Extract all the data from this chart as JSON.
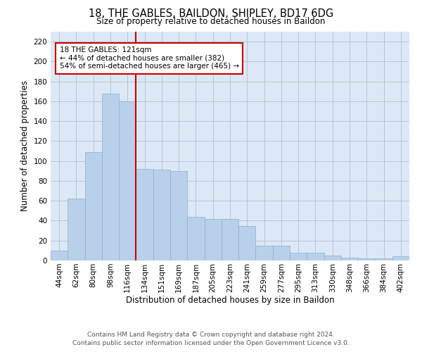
{
  "title": "18, THE GABLES, BAILDON, SHIPLEY, BD17 6DG",
  "subtitle": "Size of property relative to detached houses in Baildon",
  "xlabel": "Distribution of detached houses by size in Baildon",
  "ylabel": "Number of detached properties",
  "categories": [
    "44sqm",
    "62sqm",
    "80sqm",
    "98sqm",
    "116sqm",
    "134sqm",
    "151sqm",
    "169sqm",
    "187sqm",
    "205sqm",
    "223sqm",
    "241sqm",
    "259sqm",
    "277sqm",
    "295sqm",
    "313sqm",
    "330sqm",
    "348sqm",
    "366sqm",
    "384sqm",
    "402sqm"
  ],
  "values": [
    10,
    62,
    109,
    168,
    160,
    92,
    91,
    90,
    44,
    42,
    42,
    35,
    15,
    15,
    8,
    8,
    5,
    3,
    2,
    2,
    4
  ],
  "bar_color": "#b8d0ea",
  "bar_edge_color": "#8ab0d0",
  "background_color": "#ffffff",
  "axes_bg_color": "#dce8f5",
  "grid_color": "#b0bfd0",
  "vline_x": 4.5,
  "vline_color": "#cc0000",
  "annotation_text": "18 THE GABLES: 121sqm\n← 44% of detached houses are smaller (382)\n54% of semi-detached houses are larger (465) →",
  "annotation_box_color": "#ffffff",
  "annotation_box_edge_color": "#cc0000",
  "footer_line1": "Contains HM Land Registry data © Crown copyright and database right 2024.",
  "footer_line2": "Contains public sector information licensed under the Open Government Licence v3.0.",
  "ylim": [
    0,
    230
  ],
  "yticks": [
    0,
    20,
    40,
    60,
    80,
    100,
    120,
    140,
    160,
    180,
    200,
    220
  ],
  "title_fontsize": 10.5,
  "subtitle_fontsize": 8.5,
  "ylabel_fontsize": 8.5,
  "xlabel_fontsize": 8.5,
  "tick_fontsize": 7.5,
  "annotation_fontsize": 7.5,
  "footer_fontsize": 6.5
}
